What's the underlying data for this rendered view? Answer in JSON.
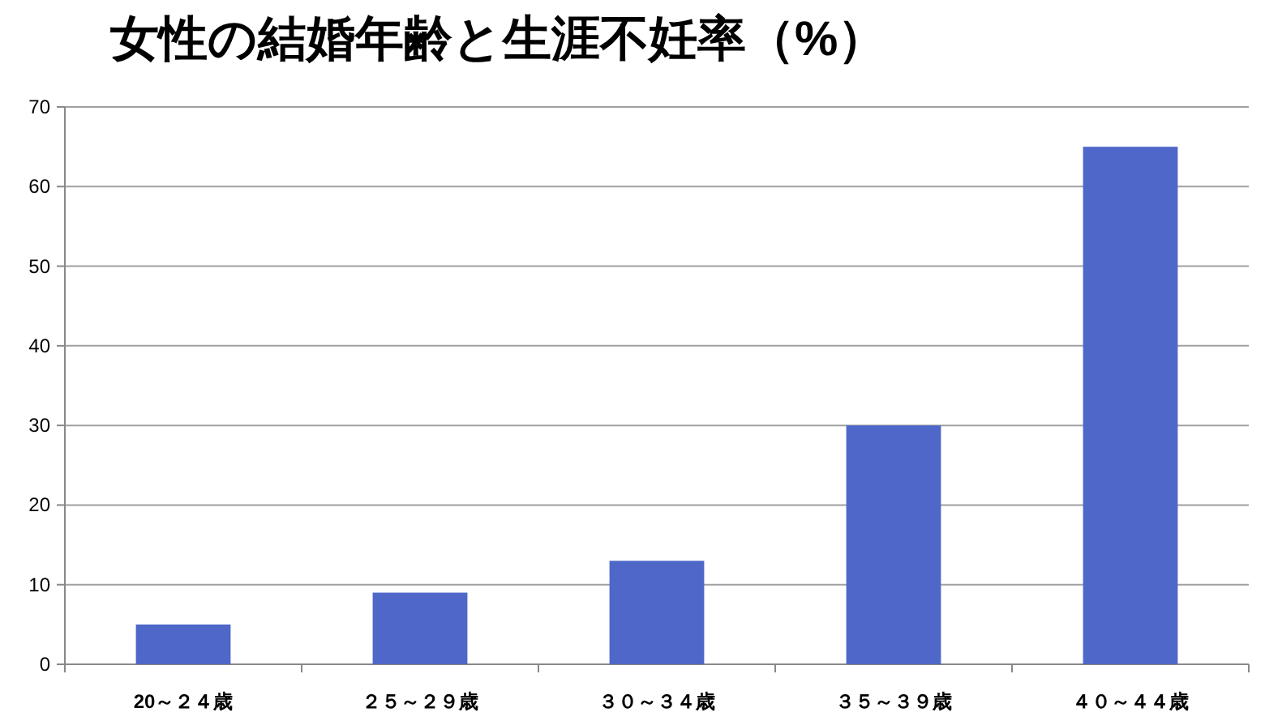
{
  "chart_data": {
    "type": "bar",
    "title": "女性の結婚年齢と生涯不妊率（%）",
    "categories": [
      "20～２４歳",
      "２５～２９歳",
      "３０～３４歳",
      "３５～３９歳",
      "４０～４４歳"
    ],
    "values": [
      5,
      9,
      13,
      30,
      65
    ],
    "color": "#4f67c8",
    "ylim": [
      0,
      70
    ],
    "yticks": [
      0,
      10,
      20,
      30,
      40,
      50,
      60,
      70
    ],
    "grid": "y"
  }
}
